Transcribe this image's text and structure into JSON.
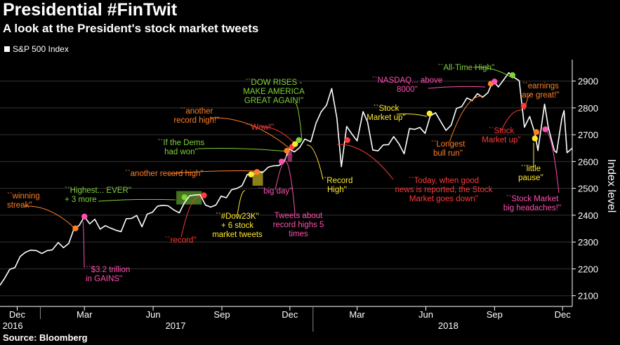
{
  "header": {
    "title": "Presidential #FinTwit",
    "subtitle": "A look at the President's stock market tweets",
    "legend_label": "S&P 500 Index",
    "source": "Source: Bloomberg"
  },
  "colors": {
    "background": "#000000",
    "line": "#ffffff",
    "orange": "#ff7f27",
    "pink": "#ff4fb0",
    "green": "#7fd13b",
    "yellow": "#ffe92e",
    "red": "#ff3a3a"
  },
  "chart_data": {
    "type": "line",
    "title": "Presidential #FinTwit",
    "series": [
      {
        "name": "S&P 500 Index"
      }
    ],
    "ylabel": "Index level",
    "ylim": [
      2060,
      2980
    ],
    "yticks": [
      2100,
      2200,
      2300,
      2400,
      2500,
      2600,
      2700,
      2800,
      2900
    ],
    "xlim": [
      "2016-11-08",
      "2018-12-14"
    ],
    "x_month_ticks": [
      {
        "label": "Dec",
        "date": "2016-12-01"
      },
      {
        "label": "Mar",
        "date": "2017-03-01"
      },
      {
        "label": "Jun",
        "date": "2017-06-01"
      },
      {
        "label": "Sep",
        "date": "2017-09-01"
      },
      {
        "label": "Dec",
        "date": "2017-12-01"
      },
      {
        "label": "Mar",
        "date": "2018-03-01"
      },
      {
        "label": "Jun",
        "date": "2018-06-01"
      },
      {
        "label": "Sep",
        "date": "2018-09-01"
      },
      {
        "label": "Dec",
        "date": "2018-12-01"
      }
    ],
    "x_year_labels": [
      {
        "label": "2016",
        "date": "2016-11-25"
      },
      {
        "label": "2017",
        "date": "2017-07-01"
      },
      {
        "label": "2018",
        "date": "2018-07-01"
      }
    ],
    "points": [
      [
        "2016-11-08",
        2139
      ],
      [
        "2016-11-14",
        2164
      ],
      [
        "2016-11-21",
        2198
      ],
      [
        "2016-11-28",
        2205
      ],
      [
        "2016-12-05",
        2246
      ],
      [
        "2016-12-12",
        2262
      ],
      [
        "2016-12-19",
        2270
      ],
      [
        "2016-12-27",
        2268
      ],
      [
        "2017-01-03",
        2257
      ],
      [
        "2017-01-10",
        2268
      ],
      [
        "2017-01-17",
        2271
      ],
      [
        "2017-01-25",
        2298
      ],
      [
        "2017-02-01",
        2279
      ],
      [
        "2017-02-08",
        2295
      ],
      [
        "2017-02-15",
        2349
      ],
      [
        "2017-02-22",
        2362
      ],
      [
        "2017-03-01",
        2395
      ],
      [
        "2017-03-08",
        2368
      ],
      [
        "2017-03-15",
        2385
      ],
      [
        "2017-03-22",
        2348
      ],
      [
        "2017-03-29",
        2361
      ],
      [
        "2017-04-05",
        2352
      ],
      [
        "2017-04-12",
        2344
      ],
      [
        "2017-04-19",
        2339
      ],
      [
        "2017-04-26",
        2387
      ],
      [
        "2017-05-03",
        2388
      ],
      [
        "2017-05-10",
        2399
      ],
      [
        "2017-05-17",
        2357
      ],
      [
        "2017-05-24",
        2404
      ],
      [
        "2017-05-31",
        2411
      ],
      [
        "2017-06-07",
        2434
      ],
      [
        "2017-06-14",
        2437
      ],
      [
        "2017-06-21",
        2435
      ],
      [
        "2017-06-29",
        2419
      ],
      [
        "2017-07-06",
        2409
      ],
      [
        "2017-07-13",
        2447
      ],
      [
        "2017-07-20",
        2473
      ],
      [
        "2017-07-27",
        2475
      ],
      [
        "2017-08-03",
        2477
      ],
      [
        "2017-08-10",
        2438
      ],
      [
        "2017-08-17",
        2430
      ],
      [
        "2017-08-24",
        2438
      ],
      [
        "2017-08-31",
        2471
      ],
      [
        "2017-09-07",
        2465
      ],
      [
        "2017-09-14",
        2495
      ],
      [
        "2017-09-21",
        2500
      ],
      [
        "2017-09-28",
        2510
      ],
      [
        "2017-10-05",
        2552
      ],
      [
        "2017-10-12",
        2550
      ],
      [
        "2017-10-19",
        2562
      ],
      [
        "2017-10-26",
        2560
      ],
      [
        "2017-11-02",
        2579
      ],
      [
        "2017-11-09",
        2584
      ],
      [
        "2017-11-16",
        2585
      ],
      [
        "2017-11-23",
        2597
      ],
      [
        "2017-11-30",
        2647
      ],
      [
        "2017-12-07",
        2636
      ],
      [
        "2017-12-14",
        2652
      ],
      [
        "2017-12-21",
        2684
      ],
      [
        "2017-12-29",
        2674
      ],
      [
        "2018-01-05",
        2743
      ],
      [
        "2018-01-12",
        2786
      ],
      [
        "2018-01-19",
        2810
      ],
      [
        "2018-01-26",
        2872
      ],
      [
        "2018-02-02",
        2762
      ],
      [
        "2018-02-08",
        2581
      ],
      [
        "2018-02-15",
        2731
      ],
      [
        "2018-02-22",
        2703
      ],
      [
        "2018-03-01",
        2677
      ],
      [
        "2018-03-09",
        2786
      ],
      [
        "2018-03-15",
        2747
      ],
      [
        "2018-03-22",
        2643
      ],
      [
        "2018-03-29",
        2640
      ],
      [
        "2018-04-05",
        2662
      ],
      [
        "2018-04-12",
        2663
      ],
      [
        "2018-04-19",
        2693
      ],
      [
        "2018-04-26",
        2666
      ],
      [
        "2018-05-03",
        2629
      ],
      [
        "2018-05-10",
        2723
      ],
      [
        "2018-05-17",
        2720
      ],
      [
        "2018-05-24",
        2727
      ],
      [
        "2018-05-31",
        2705
      ],
      [
        "2018-06-07",
        2770
      ],
      [
        "2018-06-14",
        2782
      ],
      [
        "2018-06-21",
        2749
      ],
      [
        "2018-06-28",
        2716
      ],
      [
        "2018-07-05",
        2736
      ],
      [
        "2018-07-12",
        2798
      ],
      [
        "2018-07-19",
        2805
      ],
      [
        "2018-07-26",
        2837
      ],
      [
        "2018-08-02",
        2827
      ],
      [
        "2018-08-09",
        2853
      ],
      [
        "2018-08-16",
        2840
      ],
      [
        "2018-08-23",
        2856
      ],
      [
        "2018-08-30",
        2901
      ],
      [
        "2018-09-06",
        2878
      ],
      [
        "2018-09-13",
        2904
      ],
      [
        "2018-09-20",
        2931
      ],
      [
        "2018-09-27",
        2914
      ],
      [
        "2018-10-04",
        2901
      ],
      [
        "2018-10-11",
        2728
      ],
      [
        "2018-10-18",
        2768
      ],
      [
        "2018-10-25",
        2705
      ],
      [
        "2018-10-29",
        2641
      ],
      [
        "2018-11-07",
        2814
      ],
      [
        "2018-11-12",
        2726
      ],
      [
        "2018-11-20",
        2641
      ],
      [
        "2018-11-23",
        2633
      ],
      [
        "2018-11-30",
        2760
      ],
      [
        "2018-12-03",
        2790
      ],
      [
        "2018-12-07",
        2633
      ],
      [
        "2018-12-14",
        2650
      ]
    ],
    "markers": [
      {
        "date": "2017-02-17",
        "value": 2351,
        "color": "orange"
      },
      {
        "date": "2017-03-01",
        "value": 2395,
        "color": "pink"
      },
      {
        "date": "2017-07-13",
        "value": 2467,
        "color": "green"
      },
      {
        "date": "2017-08-08",
        "value": 2474,
        "color": "red"
      },
      {
        "date": "2017-10-10",
        "value": 2552,
        "color": "yellow"
      },
      {
        "date": "2017-10-18",
        "value": 2561,
        "color": "orange"
      },
      {
        "date": "2017-11-20",
        "value": 2600,
        "color": "pink"
      },
      {
        "date": "2017-11-27",
        "value": 2640,
        "color": "orange"
      },
      {
        "date": "2017-12-04",
        "value": 2655,
        "color": "red"
      },
      {
        "date": "2017-12-08",
        "value": 2665,
        "color": "yellow"
      },
      {
        "date": "2017-12-13",
        "value": 2680,
        "color": "green"
      },
      {
        "date": "2018-02-16",
        "value": 2680,
        "color": "red"
      },
      {
        "date": "2018-06-06",
        "value": 2779,
        "color": "yellow"
      },
      {
        "date": "2018-08-27",
        "value": 2890,
        "color": "orange"
      },
      {
        "date": "2018-09-01",
        "value": 2898,
        "color": "pink"
      },
      {
        "date": "2018-09-25",
        "value": 2922,
        "color": "green"
      },
      {
        "date": "2018-10-10",
        "value": 2808,
        "color": "red"
      },
      {
        "date": "2018-10-27",
        "value": 2710,
        "color": "orange"
      },
      {
        "date": "2018-10-25",
        "value": 2686,
        "color": "yellow"
      },
      {
        "date": "2018-11-08",
        "value": 2720,
        "color": "pink"
      }
    ],
    "highlight_boxes": [
      {
        "from": "2017-07-02",
        "to": "2017-08-05",
        "low": 2440,
        "high": 2490,
        "color": "green"
      },
      {
        "from": "2017-10-12",
        "to": "2017-10-26",
        "low": 2510,
        "high": 2565,
        "color": "yellow"
      },
      {
        "from": "2017-11-28",
        "to": "2017-12-04",
        "low": 2600,
        "high": 2640,
        "color": "pink"
      }
    ],
    "annotations": [
      {
        "lines": [
          "``winning",
          "streak''"
        ],
        "color": "orange"
      },
      {
        "lines": [
          "``$3.2 trillion",
          "in GAINS''"
        ],
        "color": "pink"
      },
      {
        "lines": [
          "``Highest... EVER''",
          "+ 3 more"
        ],
        "color": "green"
      },
      {
        "lines": [
          "``record''"
        ],
        "color": "red"
      },
      {
        "lines": [
          "``another record high''"
        ],
        "color": "orange"
      },
      {
        "lines": [
          "``#Dow23K''",
          "+ 6 stock",
          "market tweets"
        ],
        "color": "yellow"
      },
      {
        "lines": [
          "Tweets about",
          "record highs 5",
          "times"
        ],
        "color": "pink"
      },
      {
        "lines": [
          "``If the Dems",
          "had won''"
        ],
        "color": "green"
      },
      {
        "lines": [
          "``another",
          "record high!''"
        ],
        "color": "orange"
      },
      {
        "lines": [
          "``Wow!''"
        ],
        "color": "red"
      },
      {
        "lines": [
          "``big day''"
        ],
        "color": "pink"
      },
      {
        "lines": [
          "``DOW RISES -",
          "MAKE AMERICA",
          "GREAT AGAIN!''"
        ],
        "color": "green"
      },
      {
        "lines": [
          "``Record",
          "High''"
        ],
        "color": "yellow"
      },
      {
        "lines": [
          "``Today, when good",
          "news is reported, the Stock",
          "Market goes down''"
        ],
        "color": "red"
      },
      {
        "lines": [
          "``Stock",
          "Market up''"
        ],
        "color": "yellow"
      },
      {
        "lines": [
          "``NASDAQ... above",
          "8000''"
        ],
        "color": "pink"
      },
      {
        "lines": [
          "``Longest",
          "bull run''"
        ],
        "color": "orange"
      },
      {
        "lines": [
          "``All-Time High''"
        ],
        "color": "green"
      },
      {
        "lines": [
          "``earnings",
          "are great!''"
        ],
        "color": "orange"
      },
      {
        "lines": [
          "``Stock",
          "Market up''"
        ],
        "color": "red"
      },
      {
        "lines": [
          "``little",
          "pause''"
        ],
        "color": "yellow"
      },
      {
        "lines": [
          "``Stock Market",
          "big headaches!''"
        ],
        "color": "pink"
      }
    ]
  }
}
